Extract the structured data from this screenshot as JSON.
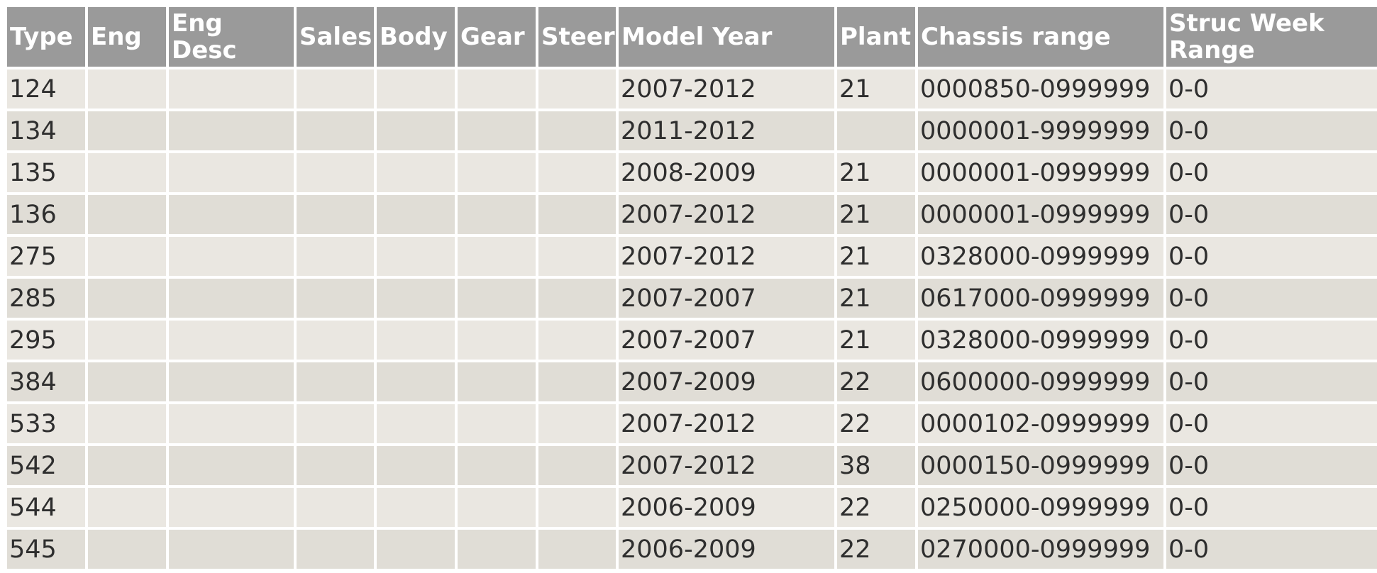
{
  "columns": [
    "Type",
    "Eng",
    "Eng Desc",
    "Sales",
    "Body",
    "Gear",
    "Steer",
    "Model Year",
    "Plant",
    "Chassis range",
    "Struc Week Range"
  ],
  "rows": [
    [
      "124",
      "",
      "",
      "",
      "",
      "",
      "",
      "2007-2012",
      "21",
      "0000850-0999999",
      "0-0"
    ],
    [
      "134",
      "",
      "",
      "",
      "",
      "",
      "",
      "2011-2012",
      "",
      "0000001-9999999",
      "0-0"
    ],
    [
      "135",
      "",
      "",
      "",
      "",
      "",
      "",
      "2008-2009",
      "21",
      "0000001-0999999",
      "0-0"
    ],
    [
      "136",
      "",
      "",
      "",
      "",
      "",
      "",
      "2007-2012",
      "21",
      "0000001-0999999",
      "0-0"
    ],
    [
      "275",
      "",
      "",
      "",
      "",
      "",
      "",
      "2007-2012",
      "21",
      "0328000-0999999",
      "0-0"
    ],
    [
      "285",
      "",
      "",
      "",
      "",
      "",
      "",
      "2007-2007",
      "21",
      "0617000-0999999",
      "0-0"
    ],
    [
      "295",
      "",
      "",
      "",
      "",
      "",
      "",
      "2007-2007",
      "21",
      "0328000-0999999",
      "0-0"
    ],
    [
      "384",
      "",
      "",
      "",
      "",
      "",
      "",
      "2007-2009",
      "22",
      "0600000-0999999",
      "0-0"
    ],
    [
      "533",
      "",
      "",
      "",
      "",
      "",
      "",
      "2007-2012",
      "22",
      "0000102-0999999",
      "0-0"
    ],
    [
      "542",
      "",
      "",
      "",
      "",
      "",
      "",
      "2007-2012",
      "38",
      "0000150-0999999",
      "0-0"
    ],
    [
      "544",
      "",
      "",
      "",
      "",
      "",
      "",
      "2006-2009",
      "22",
      "0250000-0999999",
      "0-0"
    ],
    [
      "545",
      "",
      "",
      "",
      "",
      "",
      "",
      "2006-2009",
      "22",
      "0270000-0999999",
      "0-0"
    ]
  ],
  "colors": {
    "header_bg": "#9a9a9a",
    "header_text": "#ffffff",
    "row_light": "#eae7e1",
    "row_dark": "#e0ddd6",
    "cell_text": "#2e2e2e"
  }
}
